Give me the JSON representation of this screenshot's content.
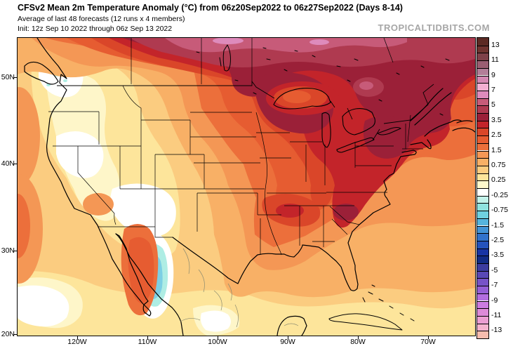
{
  "header": {
    "title": "CFSv2 Mean 2m Temperature Anomaly (°C) from 06z20Sep2022 to 06z27Sep2022 (Days 8-14)",
    "subtitle": "Average of last 48 forecasts (12 runs x 4 members)",
    "init_line": "Init: 12z Sep 10 2022 through 06z Sep 13 2022",
    "watermark": "TROPICALTIDBITS.COM"
  },
  "axes": {
    "lat_labels": [
      "50N",
      "40N",
      "30N",
      "20N"
    ],
    "lon_labels": [
      "120W",
      "110W",
      "100W",
      "90W",
      "80W",
      "70W"
    ]
  },
  "colorbar": {
    "tick_labels": [
      "13",
      "11",
      "9",
      "7",
      "5",
      "3.5",
      "2.5",
      "1.5",
      "0.75",
      "0.25",
      "-0.25",
      "-0.75",
      "-1.5",
      "-2.5",
      "-3.5",
      "-5",
      "-7",
      "-9",
      "-11",
      "-13"
    ],
    "cell_colors_top_to_bottom": [
      "#5C2A24",
      "#6F3430",
      "#7E4149",
      "#9A5E72",
      "#B37E98",
      "#D488B2",
      "#F2AFD2",
      "#DE8BBC",
      "#C75B79",
      "#AF3A50",
      "#9B2038",
      "#C3242A",
      "#DA4629",
      "#E65C31",
      "#EC6F3B",
      "#F49755",
      "#F8B066",
      "#FBCC80",
      "#FDE59B",
      "#FEF8CC",
      "#FFFFFF",
      "#C2F2E9",
      "#8FE3DF",
      "#6FD1E0",
      "#55B4DE",
      "#4293D6",
      "#3173CC",
      "#2453BC",
      "#1834A4",
      "#122C86",
      "#3C3CA0",
      "#5948B6",
      "#7753C8",
      "#955FD6",
      "#B36EE0",
      "#CB7CE0",
      "#DD8AD8",
      "#EB9ED2",
      "#F4B3CE",
      "#F6BCAE"
    ]
  },
  "chart_data": {
    "type": "heatmap",
    "subtype": "filled-contour geographic map",
    "title": "CFSv2 Mean 2m Temperature Anomaly (°C) from 06z20Sep2022 to 06z27Sep2022 (Days 8-14)",
    "variable": "2 m temperature anomaly",
    "units": "°C",
    "region": "North America / CONUS, approx 129W-63W, 20N-55N",
    "x_ticks": [
      "120W",
      "110W",
      "100W",
      "90W",
      "80W",
      "70W"
    ],
    "y_ticks": [
      "50N",
      "40N",
      "30N",
      "20N"
    ],
    "contour_level_boundaries": [
      -13,
      -12,
      -11,
      -10,
      -9,
      -8,
      -7,
      -6,
      -5,
      -4,
      -3.5,
      -3,
      -2.5,
      -2,
      -1.5,
      -1,
      -0.75,
      -0.5,
      -0.25,
      0,
      0.25,
      0.5,
      0.75,
      1,
      1.5,
      2,
      2.5,
      3,
      3.5,
      4,
      5,
      6,
      7,
      8,
      9,
      10,
      11,
      12,
      13
    ],
    "legend_position": "right vertical colorbar",
    "grid": false,
    "notable_features": [
      {
        "area": "south-central Canada (Manitoba/Ontario, top of map)",
        "anomaly_c": "+4 to +6 (max)"
      },
      {
        "area": "Upper Midwest (MN/WI/upper MI)",
        "anomaly_c": "+3.5 to +4"
      },
      {
        "area": "New York / Pennsylvania / southern Quebec",
        "anomaly_c": "+3.5 to +4"
      },
      {
        "area": "Great Lakes water surfaces (local minimum over Lake Superior)",
        "anomaly_c": "+2 to +3"
      },
      {
        "area": "Northeast and Mid-Atlantic US",
        "anomaly_c": "+3 to +3.5"
      },
      {
        "area": "Southeast US (interior GA/Carolinas patch)",
        "anomaly_c": "+3 to +4"
      },
      {
        "area": "Gulf Coast LA/MS patch",
        "anomaly_c": "+2.5 to +3.5"
      },
      {
        "area": "Central Plains / Texas",
        "anomaly_c": "+1.5 to +2.5"
      },
      {
        "area": "Pacific Northwest / Great Basin interior",
        "anomaly_c": "0 to +0.5"
      },
      {
        "area": "northern Baja California",
        "anomaly_c": "+2 to +2.5"
      },
      {
        "area": "NW Mexico / east shore of Gulf of California",
        "anomaly_c": "-0.5 to -1.5 (only cool area)"
      },
      {
        "area": "southern map edge, Caribbean and Mexico",
        "anomaly_c": "0 to +0.75"
      }
    ]
  }
}
